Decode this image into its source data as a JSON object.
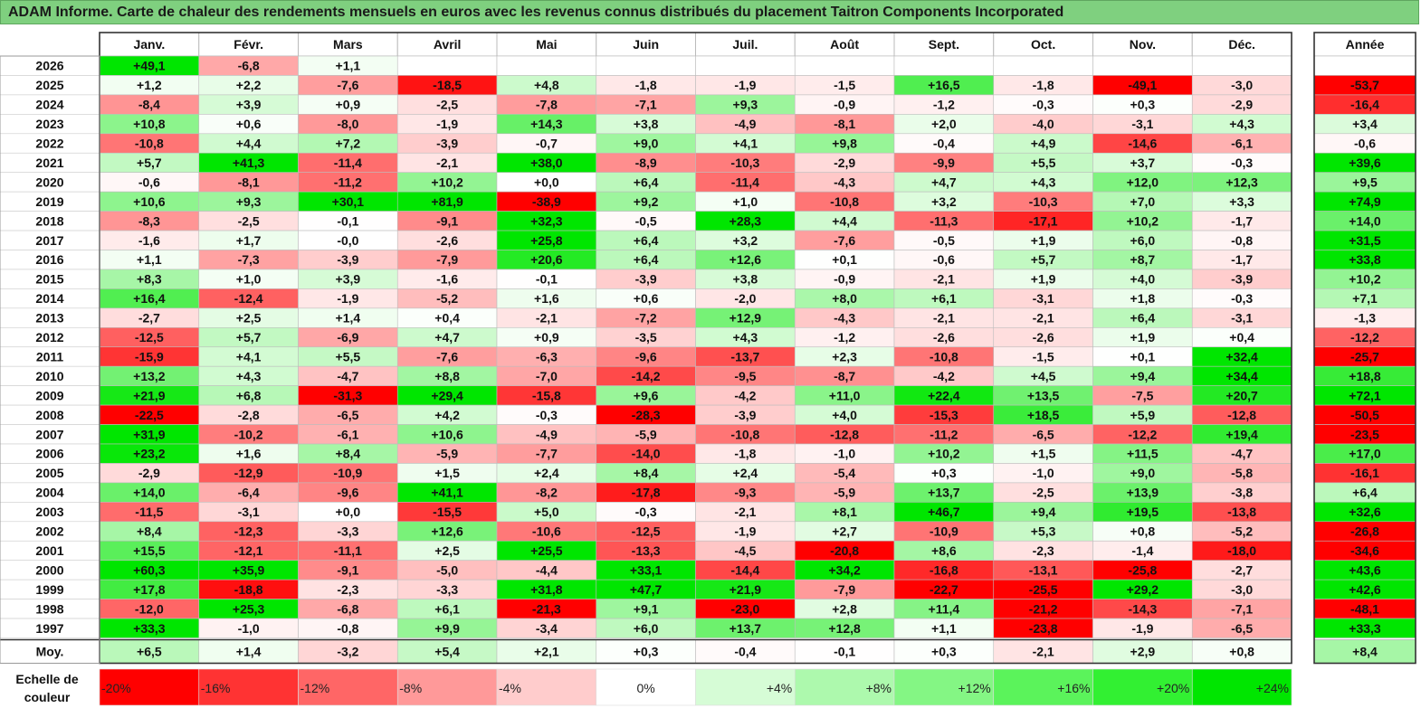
{
  "title": "ADAM Informe. Carte de chaleur des rendements mensuels en euros avec les revenus connus distribués du placement Taitron Components Incorporated",
  "chart_data": {
    "type": "heatmap",
    "months": [
      "Janv.",
      "Févr.",
      "Mars",
      "Avril",
      "Mai",
      "Juin",
      "Juil.",
      "Août",
      "Sept.",
      "Oct.",
      "Nov.",
      "Déc."
    ],
    "year_header": "Année",
    "rows": [
      {
        "year": "2026",
        "values": [
          "+49,1",
          "-6,8",
          "+1,1",
          null,
          null,
          null,
          null,
          null,
          null,
          null,
          null,
          null
        ],
        "annual": null
      },
      {
        "year": "2025",
        "values": [
          "+1,2",
          "+2,2",
          "-7,6",
          "-18,5",
          "+4,8",
          "-1,8",
          "-1,9",
          "-1,5",
          "+16,5",
          "-1,8",
          "-49,1",
          "-3,0"
        ],
        "annual": "-53,7"
      },
      {
        "year": "2024",
        "values": [
          "-8,4",
          "+3,9",
          "+0,9",
          "-2,5",
          "-7,8",
          "-7,1",
          "+9,3",
          "-0,9",
          "-1,2",
          "-0,3",
          "+0,3",
          "-2,9"
        ],
        "annual": "-16,4"
      },
      {
        "year": "2023",
        "values": [
          "+10,8",
          "+0,6",
          "-8,0",
          "-1,9",
          "+14,3",
          "+3,8",
          "-4,9",
          "-8,1",
          "+2,0",
          "-4,0",
          "-3,1",
          "+4,3"
        ],
        "annual": "+3,4"
      },
      {
        "year": "2022",
        "values": [
          "-10,8",
          "+4,4",
          "+7,2",
          "-3,9",
          "-0,7",
          "+9,0",
          "+4,1",
          "+9,8",
          "-0,4",
          "+4,9",
          "-14,6",
          "-6,1"
        ],
        "annual": "-0,6"
      },
      {
        "year": "2021",
        "values": [
          "+5,7",
          "+41,3",
          "-11,4",
          "-2,1",
          "+38,0",
          "-8,9",
          "-10,3",
          "-2,9",
          "-9,9",
          "+5,5",
          "+3,7",
          "-0,3"
        ],
        "annual": "+39,6"
      },
      {
        "year": "2020",
        "values": [
          "-0,6",
          "-8,1",
          "-11,2",
          "+10,2",
          "+0,0",
          "+6,4",
          "-11,4",
          "-4,3",
          "+4,7",
          "+4,3",
          "+12,0",
          "+12,3"
        ],
        "annual": "+9,5"
      },
      {
        "year": "2019",
        "values": [
          "+10,6",
          "+9,3",
          "+30,1",
          "+81,9",
          "-38,9",
          "+9,2",
          "+1,0",
          "-10,8",
          "+3,2",
          "-10,3",
          "+7,0",
          "+3,3"
        ],
        "annual": "+74,9"
      },
      {
        "year": "2018",
        "values": [
          "-8,3",
          "-2,5",
          "-0,1",
          "-9,1",
          "+32,3",
          "-0,5",
          "+28,3",
          "+4,4",
          "-11,3",
          "-17,1",
          "+10,2",
          "-1,7"
        ],
        "annual": "+14,0"
      },
      {
        "year": "2017",
        "values": [
          "-1,6",
          "+1,7",
          "-0,0",
          "-2,6",
          "+25,8",
          "+6,4",
          "+3,2",
          "-7,6",
          "-0,5",
          "+1,9",
          "+6,0",
          "-0,8"
        ],
        "annual": "+31,5"
      },
      {
        "year": "2016",
        "values": [
          "+1,1",
          "-7,3",
          "-3,9",
          "-7,9",
          "+20,6",
          "+6,4",
          "+12,6",
          "+0,1",
          "-0,6",
          "+5,7",
          "+8,7",
          "-1,7"
        ],
        "annual": "+33,8"
      },
      {
        "year": "2015",
        "values": [
          "+8,3",
          "+1,0",
          "+3,9",
          "-1,6",
          "-0,1",
          "-3,9",
          "+3,8",
          "-0,9",
          "-2,1",
          "+1,9",
          "+4,0",
          "-3,9"
        ],
        "annual": "+10,2"
      },
      {
        "year": "2014",
        "values": [
          "+16,4",
          "-12,4",
          "-1,9",
          "-5,2",
          "+1,6",
          "+0,6",
          "-2,0",
          "+8,0",
          "+6,1",
          "-3,1",
          "+1,8",
          "-0,3"
        ],
        "annual": "+7,1"
      },
      {
        "year": "2013",
        "values": [
          "-2,7",
          "+2,5",
          "+1,4",
          "+0,4",
          "-2,1",
          "-7,2",
          "+12,9",
          "-4,3",
          "-2,1",
          "-2,1",
          "+6,4",
          "-3,1"
        ],
        "annual": "-1,3"
      },
      {
        "year": "2012",
        "values": [
          "-12,5",
          "+5,7",
          "-6,9",
          "+4,7",
          "+0,9",
          "-3,5",
          "+4,3",
          "-1,2",
          "-2,6",
          "-2,6",
          "+1,9",
          "+0,4"
        ],
        "annual": "-12,2"
      },
      {
        "year": "2011",
        "values": [
          "-15,9",
          "+4,1",
          "+5,5",
          "-7,6",
          "-6,3",
          "-9,6",
          "-13,7",
          "+2,3",
          "-10,8",
          "-1,5",
          "+0,1",
          "+32,4"
        ],
        "annual": "-25,7"
      },
      {
        "year": "2010",
        "values": [
          "+13,2",
          "+4,3",
          "-4,7",
          "+8,8",
          "-7,0",
          "-14,2",
          "-9,5",
          "-8,7",
          "-4,2",
          "+4,5",
          "+9,4",
          "+34,4"
        ],
        "annual": "+18,8"
      },
      {
        "year": "2009",
        "values": [
          "+21,9",
          "+6,8",
          "-31,3",
          "+29,4",
          "-15,8",
          "+9,6",
          "-4,2",
          "+11,0",
          "+22,4",
          "+13,5",
          "-7,5",
          "+20,7"
        ],
        "annual": "+72,1"
      },
      {
        "year": "2008",
        "values": [
          "-22,5",
          "-2,8",
          "-6,5",
          "+4,2",
          "-0,3",
          "-28,3",
          "-3,9",
          "+4,0",
          "-15,3",
          "+18,5",
          "+5,9",
          "-12,8"
        ],
        "annual": "-50,5"
      },
      {
        "year": "2007",
        "values": [
          "+31,9",
          "-10,2",
          "-6,1",
          "+10,6",
          "-4,9",
          "-5,9",
          "-10,8",
          "-12,8",
          "-11,2",
          "-6,5",
          "-12,2",
          "+19,4"
        ],
        "annual": "-23,5"
      },
      {
        "year": "2006",
        "values": [
          "+23,2",
          "+1,6",
          "+8,4",
          "-5,9",
          "-7,7",
          "-14,0",
          "-1,8",
          "-1,0",
          "+10,2",
          "+1,5",
          "+11,5",
          "-4,7"
        ],
        "annual": "+17,0"
      },
      {
        "year": "2005",
        "values": [
          "-2,9",
          "-12,9",
          "-10,9",
          "+1,5",
          "+2,4",
          "+8,4",
          "+2,4",
          "-5,4",
          "+0,3",
          "-1,0",
          "+9,0",
          "-5,8"
        ],
        "annual": "-16,1"
      },
      {
        "year": "2004",
        "values": [
          "+14,0",
          "-6,4",
          "-9,6",
          "+41,1",
          "-8,2",
          "-17,8",
          "-9,3",
          "-5,9",
          "+13,7",
          "-2,5",
          "+13,9",
          "-3,8"
        ],
        "annual": "+6,4"
      },
      {
        "year": "2003",
        "values": [
          "-11,5",
          "-3,1",
          "+0,0",
          "-15,5",
          "+5,0",
          "-0,3",
          "-2,1",
          "+8,1",
          "+46,7",
          "+9,4",
          "+19,5",
          "-13,8"
        ],
        "annual": "+32,6"
      },
      {
        "year": "2002",
        "values": [
          "+8,4",
          "-12,3",
          "-3,3",
          "+12,6",
          "-10,6",
          "-12,5",
          "-1,9",
          "+2,7",
          "-10,9",
          "+5,3",
          "+0,8",
          "-5,2"
        ],
        "annual": "-26,8"
      },
      {
        "year": "2001",
        "values": [
          "+15,5",
          "-12,1",
          "-11,1",
          "+2,5",
          "+25,5",
          "-13,3",
          "-4,5",
          "-20,8",
          "+8,6",
          "-2,3",
          "-1,4",
          "-18,0"
        ],
        "annual": "-34,6"
      },
      {
        "year": "2000",
        "values": [
          "+60,3",
          "+35,9",
          "-9,1",
          "-5,0",
          "-4,4",
          "+33,1",
          "-14,4",
          "+34,2",
          "-16,8",
          "-13,1",
          "-25,8",
          "-2,7"
        ],
        "annual": "+43,6"
      },
      {
        "year": "1999",
        "values": [
          "+17,8",
          "-18,8",
          "-2,3",
          "-3,3",
          "+31,8",
          "+47,7",
          "+21,9",
          "-7,9",
          "-22,7",
          "-25,5",
          "+29,2",
          "-3,0"
        ],
        "annual": "+42,6"
      },
      {
        "year": "1998",
        "values": [
          "-12,0",
          "+25,3",
          "-6,8",
          "+6,1",
          "-21,3",
          "+9,1",
          "-23,0",
          "+2,8",
          "+11,4",
          "-21,2",
          "-14,3",
          "-7,1"
        ],
        "annual": "-48,1"
      },
      {
        "year": "1997",
        "values": [
          "+33,3",
          "-1,0",
          "-0,8",
          "+9,9",
          "-3,4",
          "+6,0",
          "+13,7",
          "+12,8",
          "+1,1",
          "-23,8",
          "-1,9",
          "-6,5"
        ],
        "annual": "+33,3"
      }
    ],
    "average": {
      "label": "Moy.",
      "values": [
        "+6,5",
        "+1,4",
        "-3,2",
        "+5,4",
        "+2,1",
        "+0,3",
        "-0,4",
        "-0,1",
        "+0,3",
        "-2,1",
        "+2,9",
        "+0,8"
      ],
      "annual": "+8,4"
    },
    "color_scale": {
      "label_line1": "Echelle de",
      "label_line2": "couleur",
      "steps": [
        {
          "label": "-20%",
          "value": -20,
          "color": "#ff0000"
        },
        {
          "label": "-16%",
          "value": -16,
          "color": "#ff3333"
        },
        {
          "label": "-12%",
          "value": -12,
          "color": "#ff6666"
        },
        {
          "label": "-8%",
          "value": -8,
          "color": "#ff9999"
        },
        {
          "label": "-4%",
          "value": -4,
          "color": "#ffcccc"
        },
        {
          "label": "0%",
          "value": 0,
          "color": "#ffffff"
        },
        {
          "label": "+4%",
          "value": 4,
          "color": "#d6fcd6"
        },
        {
          "label": "+8%",
          "value": 8,
          "color": "#adf9ad"
        },
        {
          "label": "+12%",
          "value": 12,
          "color": "#84f684"
        },
        {
          "label": "+16%",
          "value": 16,
          "color": "#5bf35b"
        },
        {
          "label": "+20%",
          "value": 20,
          "color": "#32f032"
        },
        {
          "label": "+24%",
          "value": 24,
          "color": "#00e600"
        }
      ]
    },
    "colors": {
      "negative_max": "#ff0000",
      "neutral": "#ffffff",
      "positive_max": "#00e600",
      "title_bar": "#7fd07f"
    }
  }
}
